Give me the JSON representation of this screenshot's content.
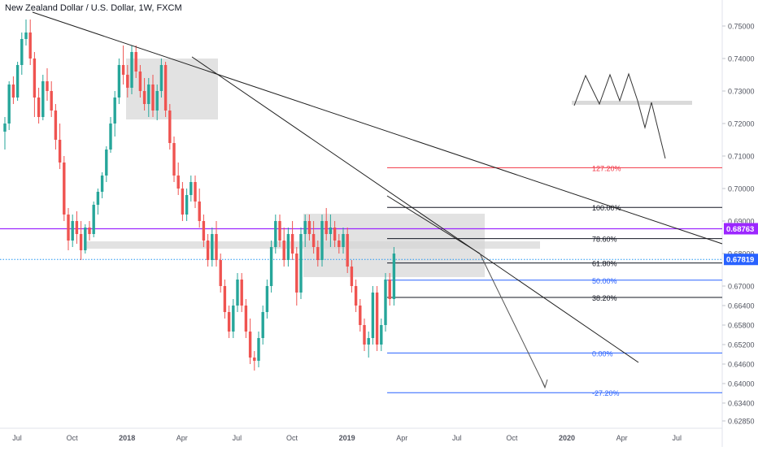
{
  "header": {
    "title": "New Zealand Dollar / U.S. Dollar, 1W, FXCM"
  },
  "colors": {
    "up": "#26a69a",
    "down": "#ef5350",
    "price_line": "#2196f3",
    "price_level_bg": "#2962ff",
    "resistance_line": "#9c27ff",
    "fib_red": "#f23645",
    "fib_blue": "#2962ff",
    "fib_black": "#131722",
    "box": "#d6d6d6",
    "trendline": "#1f1f1f",
    "axis_text": "#50535e"
  },
  "chart_data": {
    "type": "candlestick",
    "title": "New Zealand Dollar / U.S. Dollar, 1W, FXCM",
    "ylim": [
      0.6235,
      0.7555
    ],
    "y_ticks": [
      "0.75000",
      "0.74000",
      "0.73000",
      "0.72000",
      "0.71000",
      "0.70000",
      "0.69000",
      "0.68000",
      "0.67000",
      "0.66400",
      "0.65800",
      "0.65200",
      "0.64600",
      "0.64000",
      "0.63400",
      "0.62850"
    ],
    "x_ticks": [
      {
        "label": "Jul",
        "t": 0
      },
      {
        "label": "Oct",
        "t": 13
      },
      {
        "label": "2018",
        "t": 26
      },
      {
        "label": "Apr",
        "t": 39
      },
      {
        "label": "Jul",
        "t": 52
      },
      {
        "label": "Oct",
        "t": 65
      },
      {
        "label": "2019",
        "t": 78
      },
      {
        "label": "Apr",
        "t": 91
      },
      {
        "label": "Jul",
        "t": 104
      },
      {
        "label": "Oct",
        "t": 117
      },
      {
        "label": "2020",
        "t": 130
      },
      {
        "label": "Apr",
        "t": 143
      },
      {
        "label": "Jul",
        "t": 156
      }
    ],
    "price_labels": [
      {
        "text": "0.68763",
        "value": 0.68763,
        "color": "#9c27ff"
      },
      {
        "text": "0.67819",
        "value": 0.67819,
        "color": "#2962ff"
      }
    ],
    "candles": [
      [
        0.7175,
        0.722,
        0.712,
        0.72
      ],
      [
        0.72,
        0.733,
        0.718,
        0.732
      ],
      [
        0.732,
        0.7345,
        0.726,
        0.728
      ],
      [
        0.728,
        0.739,
        0.727,
        0.738
      ],
      [
        0.738,
        0.748,
        0.735,
        0.746
      ],
      [
        0.746,
        0.752,
        0.744,
        0.748
      ],
      [
        0.748,
        0.752,
        0.738,
        0.74
      ],
      [
        0.74,
        0.742,
        0.722,
        0.728
      ],
      [
        0.728,
        0.731,
        0.72,
        0.722
      ],
      [
        0.722,
        0.735,
        0.721,
        0.733
      ],
      [
        0.733,
        0.737,
        0.727,
        0.73
      ],
      [
        0.73,
        0.733,
        0.722,
        0.724
      ],
      [
        0.724,
        0.726,
        0.712,
        0.715
      ],
      [
        0.715,
        0.72,
        0.706,
        0.708
      ],
      [
        0.708,
        0.71,
        0.69,
        0.692
      ],
      [
        0.692,
        0.694,
        0.681,
        0.684
      ],
      [
        0.684,
        0.692,
        0.682,
        0.69
      ],
      [
        0.69,
        0.693,
        0.683,
        0.686
      ],
      [
        0.686,
        0.69,
        0.678,
        0.681
      ],
      [
        0.681,
        0.689,
        0.68,
        0.688
      ],
      [
        0.688,
        0.69,
        0.684,
        0.686
      ],
      [
        0.686,
        0.696,
        0.685,
        0.695
      ],
      [
        0.695,
        0.7,
        0.692,
        0.699
      ],
      [
        0.699,
        0.705,
        0.697,
        0.704
      ],
      [
        0.704,
        0.713,
        0.702,
        0.712
      ],
      [
        0.712,
        0.722,
        0.711,
        0.72
      ],
      [
        0.72,
        0.73,
        0.716,
        0.728
      ],
      [
        0.728,
        0.74,
        0.726,
        0.738
      ],
      [
        0.738,
        0.744,
        0.732,
        0.735
      ],
      [
        0.735,
        0.738,
        0.728,
        0.731
      ],
      [
        0.731,
        0.744,
        0.729,
        0.742
      ],
      [
        0.742,
        0.744,
        0.734,
        0.736
      ],
      [
        0.736,
        0.738,
        0.728,
        0.73
      ],
      [
        0.73,
        0.734,
        0.724,
        0.726
      ],
      [
        0.726,
        0.734,
        0.722,
        0.732
      ],
      [
        0.732,
        0.735,
        0.722,
        0.724
      ],
      [
        0.724,
        0.732,
        0.721,
        0.73
      ],
      [
        0.73,
        0.74,
        0.728,
        0.738
      ],
      [
        0.738,
        0.739,
        0.722,
        0.724
      ],
      [
        0.724,
        0.726,
        0.712,
        0.714
      ],
      [
        0.714,
        0.716,
        0.702,
        0.704
      ],
      [
        0.704,
        0.708,
        0.698,
        0.7
      ],
      [
        0.7,
        0.702,
        0.69,
        0.692
      ],
      [
        0.692,
        0.7,
        0.69,
        0.698
      ],
      [
        0.698,
        0.704,
        0.696,
        0.702
      ],
      [
        0.702,
        0.704,
        0.694,
        0.696
      ],
      [
        0.696,
        0.7,
        0.688,
        0.69
      ],
      [
        0.69,
        0.692,
        0.682,
        0.684
      ],
      [
        0.684,
        0.686,
        0.676,
        0.678
      ],
      [
        0.678,
        0.688,
        0.676,
        0.686
      ],
      [
        0.686,
        0.69,
        0.676,
        0.678
      ],
      [
        0.678,
        0.68,
        0.668,
        0.67
      ],
      [
        0.67,
        0.672,
        0.66,
        0.662
      ],
      [
        0.662,
        0.664,
        0.654,
        0.656
      ],
      [
        0.656,
        0.666,
        0.654,
        0.664
      ],
      [
        0.664,
        0.674,
        0.662,
        0.672
      ],
      [
        0.672,
        0.674,
        0.662,
        0.664
      ],
      [
        0.664,
        0.666,
        0.654,
        0.656
      ],
      [
        0.656,
        0.66,
        0.646,
        0.648
      ],
      [
        0.648,
        0.65,
        0.644,
        0.647
      ],
      [
        0.647,
        0.656,
        0.645,
        0.654
      ],
      [
        0.654,
        0.664,
        0.652,
        0.662
      ],
      [
        0.662,
        0.672,
        0.66,
        0.67
      ],
      [
        0.67,
        0.684,
        0.668,
        0.682
      ],
      [
        0.682,
        0.692,
        0.68,
        0.69
      ],
      [
        0.69,
        0.692,
        0.682,
        0.684
      ],
      [
        0.684,
        0.688,
        0.676,
        0.678
      ],
      [
        0.678,
        0.688,
        0.676,
        0.686
      ],
      [
        0.686,
        0.69,
        0.678,
        0.68
      ],
      [
        0.68,
        0.682,
        0.664,
        0.668
      ],
      [
        0.668,
        0.688,
        0.666,
        0.686
      ],
      [
        0.686,
        0.692,
        0.682,
        0.69
      ],
      [
        0.69,
        0.692,
        0.684,
        0.686
      ],
      [
        0.686,
        0.69,
        0.68,
        0.682
      ],
      [
        0.682,
        0.684,
        0.676,
        0.678
      ],
      [
        0.678,
        0.692,
        0.676,
        0.69
      ],
      [
        0.69,
        0.694,
        0.684,
        0.686
      ],
      [
        0.686,
        0.692,
        0.682,
        0.688
      ],
      [
        0.688,
        0.69,
        0.682,
        0.684
      ],
      [
        0.684,
        0.686,
        0.68,
        0.682
      ],
      [
        0.682,
        0.688,
        0.68,
        0.686
      ],
      [
        0.686,
        0.688,
        0.674,
        0.676
      ],
      [
        0.676,
        0.678,
        0.668,
        0.67
      ],
      [
        0.67,
        0.672,
        0.662,
        0.664
      ],
      [
        0.664,
        0.666,
        0.656,
        0.658
      ],
      [
        0.658,
        0.66,
        0.65,
        0.652
      ],
      [
        0.652,
        0.656,
        0.648,
        0.654
      ],
      [
        0.654,
        0.67,
        0.652,
        0.668
      ],
      [
        0.668,
        0.67,
        0.65,
        0.652
      ],
      [
        0.652,
        0.66,
        0.65,
        0.658
      ],
      [
        0.658,
        0.674,
        0.656,
        0.672
      ],
      [
        0.672,
        0.674,
        0.664,
        0.666
      ],
      [
        0.666,
        0.682,
        0.664,
        0.68
      ]
    ],
    "fibonacci": [
      {
        "label": "127.20%",
        "value": 0.7064,
        "color": "#f23645"
      },
      {
        "label": "100.00%",
        "value": 0.6942,
        "color": "#131722"
      },
      {
        "label": "78.60%",
        "value": 0.6846,
        "color": "#131722"
      },
      {
        "label": "61.80%",
        "value": 0.6771,
        "color": "#131722"
      },
      {
        "label": "50.00%",
        "value": 0.6718,
        "color": "#2962ff"
      },
      {
        "label": "38.20%",
        "value": 0.6665,
        "color": "#131722"
      },
      {
        "label": "0.00%",
        "value": 0.6494,
        "color": "#2962ff"
      },
      {
        "label": "-27.20%",
        "value": 0.6372,
        "color": "#2962ff"
      }
    ],
    "grid": false,
    "legend": "none"
  }
}
